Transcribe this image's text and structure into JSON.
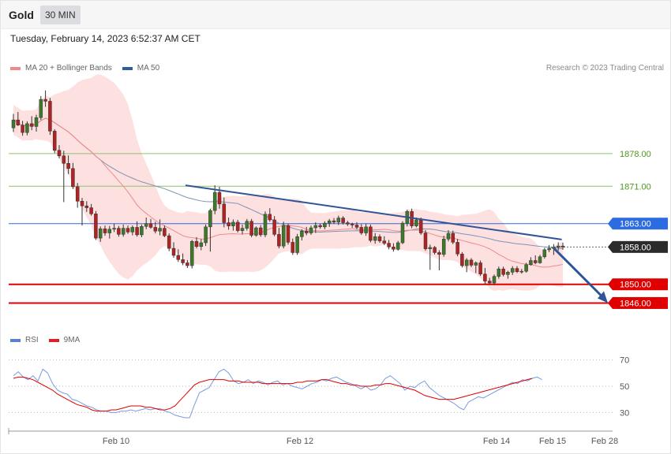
{
  "header": {
    "instrument": "Gold",
    "timeframe": "30 MIN"
  },
  "timestamp": "Tuesday, February 14, 2023 6:52:37 AM CET",
  "legend": {
    "main": [
      {
        "label": "MA 20 + Bollinger Bands",
        "color": "#f08a8a"
      },
      {
        "label": "MA 50",
        "color": "#2e5d9b"
      }
    ],
    "rsi": [
      {
        "label": "RSI",
        "color": "#5b7fd6"
      },
      {
        "label": "9MA",
        "color": "#e02020"
      }
    ]
  },
  "copyright": "Research © 2023 Trading Central",
  "colors": {
    "bullish": "#3c7a2a",
    "bearish": "#b22222",
    "bollinger_fill": "#fde0e0",
    "ma20": "#f08a8a",
    "ma50": "#7f93b8",
    "trendline": "#2f5597",
    "support": "#e00000",
    "resistance_green": "#8cc46a",
    "resistance_blue": "#2c6be0"
  },
  "chart_data": [
    {
      "type": "candlestick",
      "name": "price",
      "ylim": [
        1840,
        1894
      ],
      "x_ticks": [
        "Feb 10",
        "Feb 12",
        "Feb 14",
        "Feb 15",
        "Feb 28"
      ],
      "levels": [
        {
          "value": 1878.0,
          "label": "1878.00",
          "kind": "resistance",
          "style": "green"
        },
        {
          "value": 1871.0,
          "label": "1871.00",
          "kind": "resistance",
          "style": "green"
        },
        {
          "value": 1863.0,
          "label": "1863.00",
          "kind": "pivot",
          "style": "blue"
        },
        {
          "value": 1858.0,
          "label": "1858.00",
          "kind": "last-price",
          "style": "dark"
        },
        {
          "value": 1850.0,
          "label": "1850.00",
          "kind": "support",
          "style": "red"
        },
        {
          "value": 1846.0,
          "label": "1846.00",
          "kind": "support",
          "style": "red"
        }
      ],
      "trendline": {
        "from": [
          0,
          1871.2
        ],
        "to": [
          112,
          1859.6
        ]
      },
      "projection": {
        "from": [
          113,
          1858.0
        ],
        "to": [
          126,
          1846.0
        ]
      },
      "candles": [
        [
          1883.5,
          1886.5,
          1882.6,
          1885.2
        ],
        [
          1885.2,
          1886.9,
          1883.9,
          1884.1
        ],
        [
          1884.1,
          1885.0,
          1881.8,
          1882.5
        ],
        [
          1882.5,
          1884.9,
          1881.9,
          1884.4
        ],
        [
          1884.4,
          1886.0,
          1883.0,
          1883.8
        ],
        [
          1883.8,
          1886.3,
          1882.7,
          1885.7
        ],
        [
          1885.7,
          1890.3,
          1885.2,
          1889.6
        ],
        [
          1889.6,
          1891.5,
          1888.0,
          1889.2
        ],
        [
          1889.2,
          1889.9,
          1882.0,
          1882.8
        ],
        [
          1882.8,
          1883.2,
          1878.1,
          1878.7
        ],
        [
          1878.7,
          1879.8,
          1877.0,
          1877.5
        ],
        [
          1877.5,
          1878.6,
          1867.6,
          1875.9
        ],
        [
          1875.9,
          1877.6,
          1873.6,
          1874.8
        ],
        [
          1874.8,
          1876.0,
          1870.4,
          1870.9
        ],
        [
          1870.9,
          1871.7,
          1866.4,
          1867.8
        ],
        [
          1867.8,
          1868.5,
          1862.6,
          1866.8
        ],
        [
          1866.8,
          1867.8,
          1865.5,
          1866.4
        ],
        [
          1866.4,
          1867.2,
          1864.7,
          1865.1
        ],
        [
          1865.1,
          1865.7,
          1859.5,
          1859.9
        ],
        [
          1859.9,
          1862.4,
          1859.1,
          1861.9
        ],
        [
          1861.9,
          1862.6,
          1860.4,
          1861.0
        ],
        [
          1861.0,
          1862.5,
          1859.8,
          1861.8
        ],
        [
          1861.8,
          1863.0,
          1861.2,
          1862.0
        ],
        [
          1862.0,
          1862.5,
          1860.2,
          1860.7
        ],
        [
          1860.7,
          1862.8,
          1860.2,
          1862.0
        ],
        [
          1862.0,
          1862.6,
          1860.8,
          1861.2
        ],
        [
          1861.2,
          1862.6,
          1860.5,
          1862.2
        ],
        [
          1862.2,
          1863.5,
          1860.2,
          1860.6
        ],
        [
          1860.6,
          1862.8,
          1860.1,
          1862.4
        ],
        [
          1862.4,
          1864.3,
          1861.8,
          1863.0
        ],
        [
          1863.0,
          1864.0,
          1861.9,
          1862.2
        ],
        [
          1862.2,
          1863.4,
          1860.9,
          1861.4
        ],
        [
          1861.4,
          1863.9,
          1860.5,
          1862.0
        ],
        [
          1862.0,
          1862.6,
          1860.1,
          1860.4
        ],
        [
          1860.4,
          1860.9,
          1857.1,
          1857.7
        ],
        [
          1857.7,
          1859.0,
          1855.7,
          1856.2
        ],
        [
          1856.2,
          1857.5,
          1854.8,
          1855.3
        ],
        [
          1855.3,
          1856.6,
          1854.1,
          1854.6
        ],
        [
          1854.6,
          1855.2,
          1853.5,
          1854.0
        ],
        [
          1854.0,
          1859.5,
          1853.4,
          1859.2
        ],
        [
          1859.2,
          1860.1,
          1857.7,
          1858.1
        ],
        [
          1858.1,
          1859.7,
          1857.3,
          1858.9
        ],
        [
          1858.9,
          1862.8,
          1858.2,
          1862.3
        ],
        [
          1862.3,
          1866.2,
          1857.0,
          1865.8
        ],
        [
          1865.8,
          1871.2,
          1865.0,
          1869.7
        ],
        [
          1869.7,
          1870.9,
          1866.2,
          1867.2
        ],
        [
          1867.2,
          1868.6,
          1862.2,
          1863.2
        ],
        [
          1863.2,
          1864.3,
          1861.7,
          1862.5
        ],
        [
          1862.5,
          1863.9,
          1861.5,
          1863.3
        ],
        [
          1863.3,
          1863.8,
          1861.1,
          1861.5
        ],
        [
          1861.5,
          1862.8,
          1860.7,
          1862.0
        ],
        [
          1862.0,
          1864.0,
          1861.5,
          1863.5
        ],
        [
          1863.5,
          1864.0,
          1860.1,
          1860.5
        ],
        [
          1860.5,
          1862.4,
          1860.2,
          1862.1
        ],
        [
          1862.1,
          1862.7,
          1860.2,
          1860.6
        ],
        [
          1860.6,
          1865.6,
          1860.1,
          1865.0
        ],
        [
          1865.0,
          1866.3,
          1863.4,
          1863.8
        ],
        [
          1863.8,
          1864.6,
          1860.3,
          1860.7
        ],
        [
          1860.7,
          1862.1,
          1857.7,
          1858.2
        ],
        [
          1858.2,
          1863.4,
          1857.7,
          1862.6
        ],
        [
          1862.6,
          1863.0,
          1858.5,
          1859.0
        ],
        [
          1859.0,
          1859.8,
          1856.3,
          1856.8
        ],
        [
          1856.8,
          1860.8,
          1856.3,
          1860.2
        ],
        [
          1860.2,
          1861.8,
          1859.4,
          1861.4
        ],
        [
          1861.4,
          1862.3,
          1860.5,
          1861.0
        ],
        [
          1861.0,
          1862.6,
          1860.6,
          1862.1
        ],
        [
          1862.1,
          1863.3,
          1861.0,
          1862.6
        ],
        [
          1862.6,
          1863.0,
          1861.9,
          1862.3
        ],
        [
          1862.3,
          1863.5,
          1861.8,
          1863.1
        ],
        [
          1863.1,
          1864.0,
          1862.3,
          1863.6
        ],
        [
          1863.6,
          1864.2,
          1862.9,
          1863.3
        ],
        [
          1863.3,
          1864.7,
          1862.7,
          1864.2
        ],
        [
          1864.2,
          1864.6,
          1862.8,
          1863.2
        ],
        [
          1863.2,
          1863.6,
          1862.5,
          1862.9
        ],
        [
          1862.9,
          1863.2,
          1862.1,
          1862.7
        ],
        [
          1862.7,
          1863.3,
          1861.8,
          1862.2
        ],
        [
          1862.2,
          1862.9,
          1860.6,
          1861.0
        ],
        [
          1861.0,
          1863.0,
          1860.4,
          1862.3
        ],
        [
          1862.3,
          1862.8,
          1859.0,
          1859.4
        ],
        [
          1859.4,
          1861.0,
          1858.7,
          1860.2
        ],
        [
          1860.2,
          1860.7,
          1858.9,
          1859.3
        ],
        [
          1859.3,
          1860.3,
          1858.4,
          1858.8
        ],
        [
          1858.8,
          1859.5,
          1857.5,
          1858.0
        ],
        [
          1858.0,
          1858.8,
          1857.0,
          1857.5
        ],
        [
          1857.5,
          1859.3,
          1857.2,
          1858.9
        ],
        [
          1858.9,
          1863.5,
          1858.6,
          1863.1
        ],
        [
          1863.1,
          1866.0,
          1862.4,
          1865.6
        ],
        [
          1865.6,
          1866.2,
          1862.0,
          1862.5
        ],
        [
          1862.5,
          1864.3,
          1862.2,
          1863.8
        ],
        [
          1863.8,
          1864.3,
          1860.6,
          1861.0
        ],
        [
          1861.0,
          1861.6,
          1857.2,
          1857.6
        ],
        [
          1857.6,
          1858.5,
          1853.1,
          1857.9
        ],
        [
          1857.9,
          1858.2,
          1856.4,
          1856.8
        ],
        [
          1856.8,
          1857.3,
          1853.0,
          1856.4
        ],
        [
          1856.4,
          1860.4,
          1855.9,
          1859.7
        ],
        [
          1859.7,
          1861.6,
          1859.2,
          1860.9
        ],
        [
          1860.9,
          1861.5,
          1858.6,
          1859.0
        ],
        [
          1859.0,
          1859.7,
          1856.0,
          1856.5
        ],
        [
          1856.5,
          1856.9,
          1853.6,
          1854.0
        ],
        [
          1854.0,
          1855.6,
          1852.6,
          1855.2
        ],
        [
          1855.2,
          1855.6,
          1853.7,
          1854.1
        ],
        [
          1854.1,
          1854.9,
          1852.4,
          1854.6
        ],
        [
          1854.6,
          1855.1,
          1851.8,
          1852.2
        ],
        [
          1852.2,
          1853.5,
          1849.9,
          1850.7
        ],
        [
          1850.7,
          1851.4,
          1849.9,
          1850.3
        ],
        [
          1850.3,
          1852.1,
          1849.8,
          1851.7
        ],
        [
          1851.7,
          1853.8,
          1851.2,
          1853.3
        ],
        [
          1853.3,
          1853.8,
          1851.7,
          1852.1
        ],
        [
          1852.1,
          1852.9,
          1851.2,
          1852.6
        ],
        [
          1852.6,
          1853.9,
          1852.0,
          1853.4
        ],
        [
          1853.4,
          1853.9,
          1852.4,
          1852.7
        ],
        [
          1852.7,
          1853.3,
          1852.3,
          1852.8
        ],
        [
          1852.8,
          1854.6,
          1852.5,
          1854.2
        ],
        [
          1854.2,
          1855.8,
          1854.0,
          1855.1
        ],
        [
          1855.1,
          1856.2,
          1854.3,
          1854.6
        ],
        [
          1854.6,
          1856.3,
          1854.4,
          1855.9
        ],
        [
          1855.9,
          1857.8,
          1855.5,
          1857.4
        ],
        [
          1857.4,
          1858.4,
          1856.9,
          1857.7
        ],
        [
          1857.7,
          1858.6,
          1856.3,
          1857.9
        ],
        [
          1857.9,
          1859.0,
          1857.2,
          1858.2
        ],
        [
          1858.2,
          1858.9,
          1857.4,
          1858.0
        ]
      ]
    },
    {
      "type": "line",
      "name": "rsi",
      "ylim": [
        20,
        80
      ],
      "y_ticks": [
        70,
        50,
        30
      ],
      "series": [
        {
          "name": "RSI",
          "values": [
            58,
            61,
            57,
            55,
            58,
            54,
            63,
            60,
            52,
            47,
            45,
            44,
            40,
            39,
            37,
            35,
            34,
            32,
            31,
            31,
            30,
            30,
            31,
            31,
            32,
            31,
            32,
            33,
            32,
            33,
            33,
            31,
            30,
            28,
            27,
            26,
            26,
            36,
            45,
            47,
            49,
            55,
            61,
            63,
            60,
            54,
            52,
            53,
            55,
            52,
            54,
            53,
            51,
            53,
            54,
            51,
            52,
            50,
            49,
            48,
            50,
            52,
            53,
            55,
            54,
            56,
            57,
            55,
            53,
            52,
            50,
            48,
            50,
            47,
            48,
            51,
            56,
            58,
            55,
            52,
            47,
            50,
            49,
            52,
            54,
            49,
            46,
            43,
            41,
            39,
            37,
            34,
            32,
            38,
            40,
            42,
            41,
            43,
            45,
            47,
            49,
            51,
            53,
            52,
            55,
            54,
            56,
            57,
            55
          ]
        },
        {
          "name": "9MA",
          "values": [
            56,
            57,
            57,
            56,
            55,
            53,
            51,
            49,
            47,
            44,
            42,
            40,
            38,
            36,
            35,
            34,
            32,
            31,
            31,
            31,
            32,
            32,
            33,
            34,
            35,
            35,
            35,
            34,
            34,
            33,
            32,
            32,
            33,
            35,
            39,
            43,
            47,
            51,
            53,
            54,
            55,
            55,
            55,
            55,
            54,
            54,
            54,
            53,
            53,
            53,
            53,
            52,
            52,
            52,
            52,
            52,
            52,
            52,
            53,
            53,
            54,
            54,
            54,
            55,
            55,
            54,
            53,
            52,
            52,
            51,
            51,
            50,
            50,
            50,
            51,
            51,
            52,
            52,
            51,
            50,
            49,
            48,
            47,
            45,
            43,
            42,
            41,
            40,
            40,
            40,
            40,
            41,
            42,
            43,
            44,
            45,
            46,
            47,
            48,
            49,
            50,
            51,
            52,
            53,
            54,
            55,
            56
          ]
        }
      ]
    }
  ]
}
